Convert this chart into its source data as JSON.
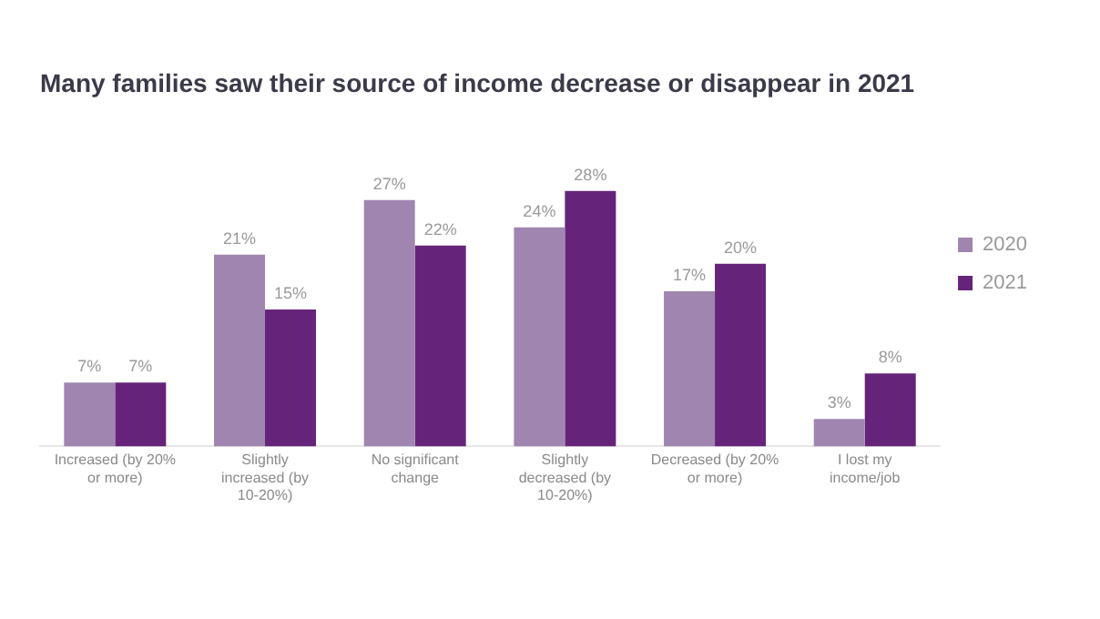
{
  "chart_data": {
    "type": "bar",
    "title": "Many families saw their source of income decrease or disappear in 2021",
    "categories": [
      "Increased (by 20% or more)",
      "Slightly increased (by 10-20%)",
      "No significant change",
      "Slightly decreased (by 10-20%)",
      "Decreased (by 20% or more)",
      "I lost my income/job"
    ],
    "series": [
      {
        "name": "2020",
        "color": "#a085b0",
        "values": [
          7,
          21,
          27,
          24,
          17,
          3
        ],
        "value_labels": [
          "7%",
          "21%",
          "27%",
          "24%",
          "17%",
          "3%"
        ]
      },
      {
        "name": "2021",
        "color": "#652479",
        "values": [
          7,
          15,
          22,
          28,
          20,
          8
        ],
        "value_labels": [
          "7%",
          "15%",
          "22%",
          "28%",
          "20%",
          "8%"
        ]
      }
    ],
    "legend": "right",
    "grid": false
  }
}
